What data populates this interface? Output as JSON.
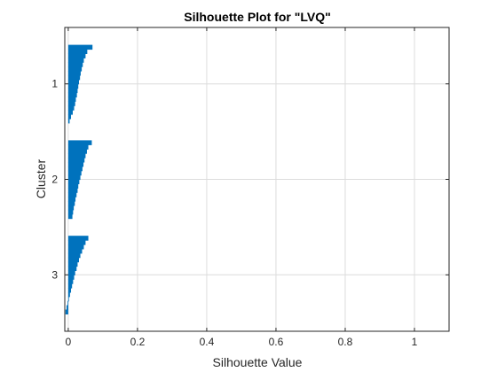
{
  "chart_data": {
    "type": "bar",
    "orientation": "horizontal",
    "title": "Silhouette Plot for \"LVQ\"",
    "xlabel": "Silhouette Value",
    "ylabel": "Cluster",
    "xlim": [
      -0.01,
      1.1
    ],
    "xticks": [
      0,
      0.2,
      0.4,
      0.6,
      0.8,
      1
    ],
    "xtick_labels": [
      "0",
      "0.2",
      "0.4",
      "0.6",
      "0.8",
      "1"
    ],
    "grid": true,
    "bar_color": "#0072BD",
    "clusters": [
      {
        "label": "1",
        "values": [
          0.07,
          0.055,
          0.05,
          0.045,
          0.042,
          0.039,
          0.036,
          0.034,
          0.031,
          0.029,
          0.027,
          0.025,
          0.022,
          0.02,
          0.017,
          0.013,
          0.008,
          0.004
        ]
      },
      {
        "label": "2",
        "values": [
          0.068,
          0.058,
          0.054,
          0.05,
          0.047,
          0.044,
          0.041,
          0.038,
          0.035,
          0.032,
          0.029,
          0.027,
          0.024,
          0.021,
          0.019,
          0.016,
          0.014,
          0.012
        ]
      },
      {
        "label": "3",
        "values": [
          0.058,
          0.05,
          0.045,
          0.04,
          0.035,
          0.031,
          0.027,
          0.024,
          0.02,
          0.017,
          0.014,
          0.011,
          0.008,
          0.005,
          0.002,
          -0.002,
          -0.005,
          -0.008
        ]
      }
    ]
  }
}
